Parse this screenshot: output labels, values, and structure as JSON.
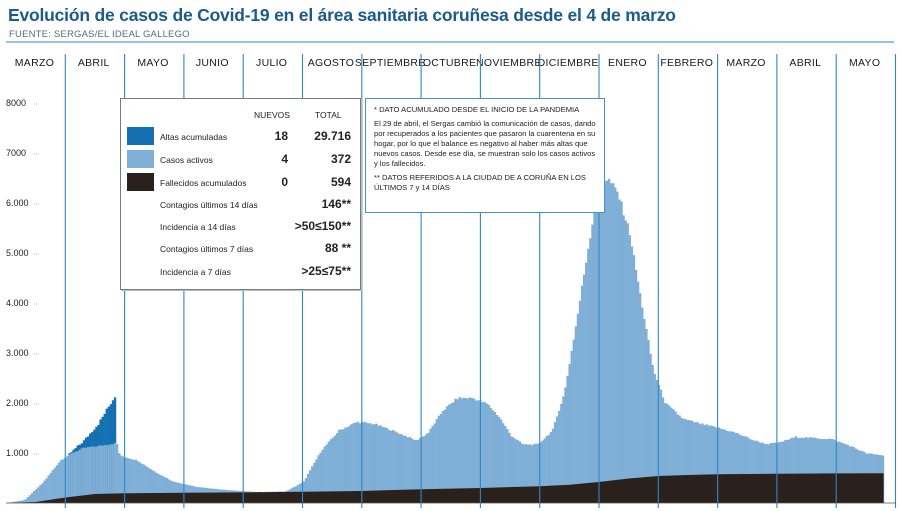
{
  "header": {
    "title": "Evolución de casos de Covid-19 en el área sanitaria coruñesa desde el 4 de marzo",
    "source": "FUENTE: SERGAS/EL IDEAL GALLEGO"
  },
  "legend": {
    "col_new": "NUEVOS",
    "col_total": "TOTAL",
    "rows": [
      {
        "label": "Altas acumuladas",
        "new": "18",
        "total": "29.716",
        "color": "#1470b0"
      },
      {
        "label": "Casos activos",
        "new": "4",
        "total": "372",
        "color": "#7fafd6"
      },
      {
        "label": "Fallecidos acumulados",
        "new": "0",
        "total": "594",
        "color": "#2a211c"
      },
      {
        "label": "Contagios últimos 14 días",
        "new": "",
        "total": "146**"
      },
      {
        "label": "Incidencia a 14 días",
        "new": "",
        "total": ">50≤150**"
      },
      {
        "label": "Contagios últimos 7 días",
        "new": "",
        "total": "88 **"
      },
      {
        "label": "Incidencia a 7 días",
        "new": "",
        "total": ">25≤75**"
      }
    ]
  },
  "notes": {
    "note1": "* DATO ACUMULADO DESDE EL INICIO DE LA PANDEMIA",
    "note2": "El 29 de abril, el Sergas cambió la comunicación de casos, dando por recuperados a los pacientes que pasaron la cuarentena en su hogar, por lo que el balance es negativo al haber más altas que nuevos casos. Desde ese día, se muestran solo los casos activos y los fallecidos.",
    "note3": "** DATOS REFERIDOS A LA CIUDAD DE A CORUÑA EN LOS ÚLTIMOS 7 y 14 DÍAS"
  },
  "colors": {
    "altas": "#1470b0",
    "activos": "#7fafd6",
    "fallecidos": "#2a211c",
    "month_lines": "#2f86c6"
  },
  "chart_data": {
    "type": "area",
    "title": "Evolución de casos de Covid-19 en el área sanitaria coruñesa desde el 4 de marzo",
    "months": [
      "MARZO",
      "ABRIL",
      "MAYO",
      "JUNIO",
      "JULIO",
      "AGOSTO",
      "SEPTIEMBRE",
      "OCTUBRE",
      "NOVIEMBRE",
      "DICIEMBRE",
      "ENERO",
      "FEBRERO",
      "MARZO",
      "ABRIL",
      "MAYO"
    ],
    "y_ticks": [
      "1.000",
      "2.000",
      "3.000",
      "4.000",
      "5.000",
      "6.000",
      "7000",
      "8000"
    ],
    "ylim": [
      0,
      8000
    ],
    "x_unit": "months since 4 March 2020",
    "xlim": [
      0,
      14.8
    ],
    "series": [
      {
        "name": "Casos activos",
        "points": [
          [
            0,
            0
          ],
          [
            0.3,
            60
          ],
          [
            0.6,
            400
          ],
          [
            0.9,
            850
          ],
          [
            1.1,
            1000
          ],
          [
            1.3,
            1100
          ],
          [
            1.6,
            1150
          ],
          [
            1.85,
            1200
          ],
          [
            1.9,
            950
          ],
          [
            2.2,
            850
          ],
          [
            2.5,
            620
          ],
          [
            2.8,
            430
          ],
          [
            3.2,
            320
          ],
          [
            3.7,
            260
          ],
          [
            4.2,
            220
          ],
          [
            4.7,
            230
          ],
          [
            5.0,
            420
          ],
          [
            5.3,
            1050
          ],
          [
            5.6,
            1450
          ],
          [
            5.9,
            1620
          ],
          [
            6.2,
            1580
          ],
          [
            6.5,
            1450
          ],
          [
            6.9,
            1250
          ],
          [
            7.1,
            1400
          ],
          [
            7.35,
            1850
          ],
          [
            7.6,
            2100
          ],
          [
            7.85,
            2100
          ],
          [
            8.1,
            1980
          ],
          [
            8.3,
            1720
          ],
          [
            8.5,
            1350
          ],
          [
            8.7,
            1170
          ],
          [
            8.95,
            1170
          ],
          [
            9.2,
            1450
          ],
          [
            9.4,
            2200
          ],
          [
            9.6,
            3600
          ],
          [
            9.8,
            5100
          ],
          [
            9.95,
            6150
          ],
          [
            10.05,
            6500
          ],
          [
            10.15,
            6450
          ],
          [
            10.3,
            6200
          ],
          [
            10.5,
            5400
          ],
          [
            10.7,
            4000
          ],
          [
            10.9,
            2650
          ],
          [
            11.1,
            2000
          ],
          [
            11.4,
            1680
          ],
          [
            11.7,
            1580
          ],
          [
            12.0,
            1500
          ],
          [
            12.3,
            1400
          ],
          [
            12.6,
            1250
          ],
          [
            12.8,
            1180
          ],
          [
            13.0,
            1200
          ],
          [
            13.3,
            1320
          ],
          [
            13.6,
            1300
          ],
          [
            13.9,
            1280
          ],
          [
            14.2,
            1150
          ],
          [
            14.5,
            990
          ],
          [
            14.8,
            950
          ]
        ]
      },
      {
        "name": "Altas acumuladas",
        "points": [
          [
            1.05,
            980
          ],
          [
            1.3,
            1250
          ],
          [
            1.55,
            1600
          ],
          [
            1.85,
            2200
          ]
        ]
      },
      {
        "name": "Fallecidos acumulados",
        "points": [
          [
            0,
            0
          ],
          [
            0.5,
            20
          ],
          [
            1.0,
            110
          ],
          [
            1.5,
            180
          ],
          [
            2.0,
            195
          ],
          [
            3.0,
            205
          ],
          [
            4.0,
            212
          ],
          [
            5.0,
            225
          ],
          [
            6.0,
            240
          ],
          [
            7.0,
            275
          ],
          [
            8.0,
            300
          ],
          [
            9.0,
            335
          ],
          [
            9.5,
            365
          ],
          [
            10.0,
            420
          ],
          [
            10.5,
            490
          ],
          [
            11.0,
            540
          ],
          [
            11.5,
            560
          ],
          [
            12.0,
            575
          ],
          [
            13.0,
            585
          ],
          [
            14.0,
            592
          ],
          [
            14.8,
            595
          ]
        ]
      }
    ]
  }
}
